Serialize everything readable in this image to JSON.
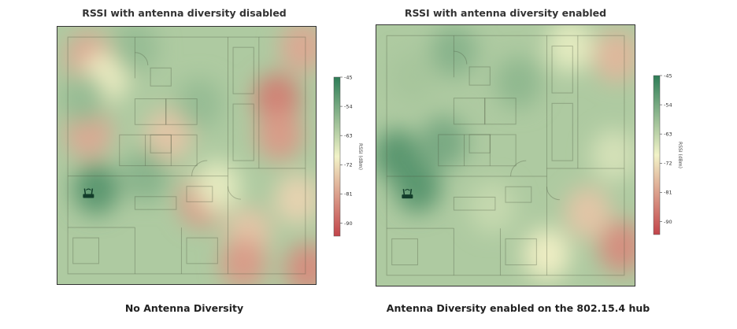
{
  "chart_data": [
    {
      "type": "heatmap",
      "title": "RSSI with antenna diversity disabled",
      "caption": "No Antenna Diversity",
      "colorbar": {
        "label": "RSSI (dBm)",
        "ticks": [
          -45,
          -54,
          -63,
          -72,
          -81,
          -90
        ],
        "range": [
          -94,
          -45
        ]
      },
      "hotspots": [
        {
          "x": 0.12,
          "y": 0.12,
          "value": -80
        },
        {
          "x": 0.18,
          "y": 0.2,
          "value": -70
        },
        {
          "x": 0.12,
          "y": 0.41,
          "value": -80
        },
        {
          "x": 0.43,
          "y": 0.42,
          "value": -76
        },
        {
          "x": 0.56,
          "y": 0.68,
          "value": -82
        },
        {
          "x": 0.85,
          "y": 0.28,
          "value": -86
        },
        {
          "x": 0.86,
          "y": 0.42,
          "value": -82
        },
        {
          "x": 0.95,
          "y": 0.08,
          "value": -80
        },
        {
          "x": 0.74,
          "y": 0.8,
          "value": -76
        },
        {
          "x": 0.72,
          "y": 0.92,
          "value": -82
        },
        {
          "x": 0.97,
          "y": 0.94,
          "value": -84
        },
        {
          "x": 0.93,
          "y": 0.67,
          "value": -74
        },
        {
          "x": 0.15,
          "y": 0.63,
          "value": -50
        },
        {
          "x": 0.34,
          "y": 0.58,
          "value": -56
        },
        {
          "x": 0.3,
          "y": 0.08,
          "value": -58
        },
        {
          "x": 0.55,
          "y": 0.3,
          "value": -58
        },
        {
          "x": 0.1,
          "y": 0.28,
          "value": -58
        },
        {
          "x": 0.62,
          "y": 0.62,
          "value": -68
        }
      ]
    },
    {
      "type": "heatmap",
      "title": "RSSI with antenna diversity enabled",
      "caption": "Antenna Diversity enabled on the 802.15.4 hub",
      "colorbar": {
        "label": "RSSI (dBm)",
        "ticks": [
          -45,
          -54,
          -63,
          -72,
          -81,
          -90
        ],
        "range": [
          -94,
          -45
        ]
      },
      "hotspots": [
        {
          "x": 0.08,
          "y": 0.5,
          "value": -50
        },
        {
          "x": 0.16,
          "y": 0.62,
          "value": -50
        },
        {
          "x": 0.26,
          "y": 0.45,
          "value": -54
        },
        {
          "x": 0.3,
          "y": 0.1,
          "value": -56
        },
        {
          "x": 0.55,
          "y": 0.22,
          "value": -57
        },
        {
          "x": 0.14,
          "y": 0.2,
          "value": -60
        },
        {
          "x": 0.93,
          "y": 0.12,
          "value": -78
        },
        {
          "x": 0.75,
          "y": 0.08,
          "value": -68
        },
        {
          "x": 0.95,
          "y": 0.85,
          "value": -84
        },
        {
          "x": 0.82,
          "y": 0.72,
          "value": -76
        },
        {
          "x": 0.66,
          "y": 0.88,
          "value": -70
        },
        {
          "x": 0.92,
          "y": 0.5,
          "value": -66
        },
        {
          "x": 0.45,
          "y": 0.7,
          "value": -64
        }
      ]
    }
  ],
  "colors": {
    "strong": "#2e7d57",
    "mid": "#f2f3c8",
    "weak": "#c2444a"
  },
  "hub_icon": "router-icon"
}
